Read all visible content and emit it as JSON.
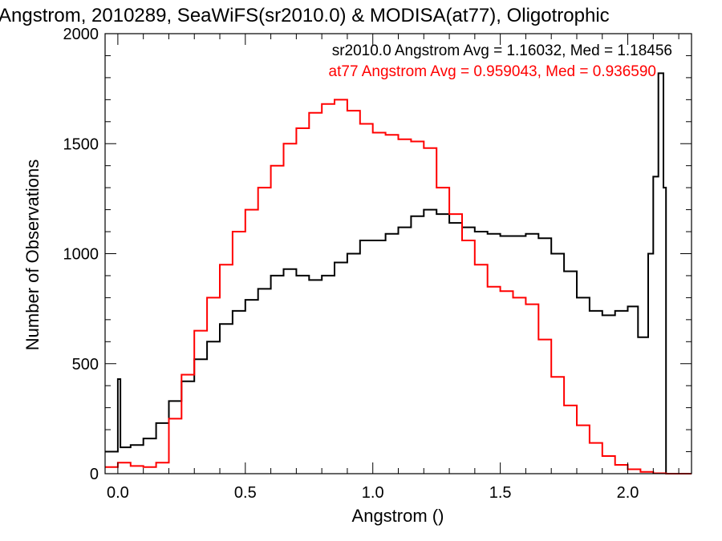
{
  "chart_data": {
    "type": "line",
    "step": true,
    "title": "Angstrom, 2010289, SeaWiFS(sr2010.0) & MODISA(at77), Oligotrophic",
    "xlabel": "Angstrom ()",
    "ylabel": "Number of Observations",
    "xlim": [
      -0.05,
      2.25
    ],
    "ylim": [
      0,
      2000
    ],
    "x_ticks": [
      0.0,
      0.5,
      1.0,
      1.5,
      2.0
    ],
    "x_tick_labels": [
      "0.0",
      "0.5",
      "1.0",
      "1.5",
      "2.0"
    ],
    "y_ticks": [
      0,
      500,
      1000,
      1500,
      2000
    ],
    "y_tick_labels": [
      "0",
      "500",
      "1000",
      "1500",
      "2000"
    ],
    "grid": false,
    "annotations": [
      {
        "text": "sr2010.0 Angstrom Avg = 1.16032, Med = 1.18456",
        "color": "#000000"
      },
      {
        "text": "at77 Angstrom Avg = 0.959043, Med = 0.936590",
        "color": "#ff0000"
      }
    ],
    "series": [
      {
        "color": "#000000",
        "points": [
          [
            -0.05,
            100
          ],
          [
            0.0,
            430
          ],
          [
            0.01,
            120
          ],
          [
            0.05,
            130
          ],
          [
            0.1,
            160
          ],
          [
            0.15,
            230
          ],
          [
            0.2,
            330
          ],
          [
            0.25,
            420
          ],
          [
            0.3,
            520
          ],
          [
            0.35,
            600
          ],
          [
            0.4,
            680
          ],
          [
            0.45,
            740
          ],
          [
            0.5,
            790
          ],
          [
            0.55,
            840
          ],
          [
            0.6,
            900
          ],
          [
            0.65,
            930
          ],
          [
            0.7,
            900
          ],
          [
            0.75,
            880
          ],
          [
            0.8,
            900
          ],
          [
            0.85,
            960
          ],
          [
            0.9,
            1000
          ],
          [
            0.95,
            1060
          ],
          [
            1.0,
            1060
          ],
          [
            1.05,
            1090
          ],
          [
            1.1,
            1120
          ],
          [
            1.15,
            1170
          ],
          [
            1.2,
            1200
          ],
          [
            1.25,
            1180
          ],
          [
            1.3,
            1140
          ],
          [
            1.35,
            1120
          ],
          [
            1.4,
            1100
          ],
          [
            1.45,
            1090
          ],
          [
            1.5,
            1080
          ],
          [
            1.55,
            1080
          ],
          [
            1.6,
            1090
          ],
          [
            1.65,
            1070
          ],
          [
            1.7,
            1000
          ],
          [
            1.75,
            920
          ],
          [
            1.8,
            800
          ],
          [
            1.85,
            740
          ],
          [
            1.9,
            720
          ],
          [
            1.95,
            740
          ],
          [
            2.0,
            760
          ],
          [
            2.04,
            620
          ],
          [
            2.08,
            1000
          ],
          [
            2.1,
            1350
          ],
          [
            2.12,
            1820
          ],
          [
            2.14,
            1300
          ],
          [
            2.15,
            0
          ]
        ]
      },
      {
        "color": "#ff0000",
        "points": [
          [
            -0.05,
            30
          ],
          [
            0.0,
            50
          ],
          [
            0.05,
            35
          ],
          [
            0.1,
            30
          ],
          [
            0.15,
            50
          ],
          [
            0.2,
            250
          ],
          [
            0.25,
            450
          ],
          [
            0.3,
            650
          ],
          [
            0.35,
            800
          ],
          [
            0.4,
            950
          ],
          [
            0.45,
            1100
          ],
          [
            0.5,
            1200
          ],
          [
            0.55,
            1300
          ],
          [
            0.6,
            1400
          ],
          [
            0.65,
            1500
          ],
          [
            0.7,
            1570
          ],
          [
            0.75,
            1640
          ],
          [
            0.8,
            1680
          ],
          [
            0.85,
            1700
          ],
          [
            0.9,
            1650
          ],
          [
            0.95,
            1590
          ],
          [
            1.0,
            1550
          ],
          [
            1.05,
            1540
          ],
          [
            1.1,
            1520
          ],
          [
            1.15,
            1510
          ],
          [
            1.2,
            1480
          ],
          [
            1.25,
            1300
          ],
          [
            1.3,
            1180
          ],
          [
            1.35,
            1060
          ],
          [
            1.4,
            950
          ],
          [
            1.45,
            850
          ],
          [
            1.5,
            830
          ],
          [
            1.55,
            800
          ],
          [
            1.6,
            770
          ],
          [
            1.65,
            610
          ],
          [
            1.7,
            440
          ],
          [
            1.75,
            310
          ],
          [
            1.8,
            220
          ],
          [
            1.85,
            140
          ],
          [
            1.9,
            80
          ],
          [
            1.95,
            40
          ],
          [
            2.0,
            20
          ],
          [
            2.05,
            8
          ],
          [
            2.1,
            2
          ],
          [
            2.15,
            0
          ],
          [
            2.25,
            0
          ]
        ]
      }
    ]
  }
}
